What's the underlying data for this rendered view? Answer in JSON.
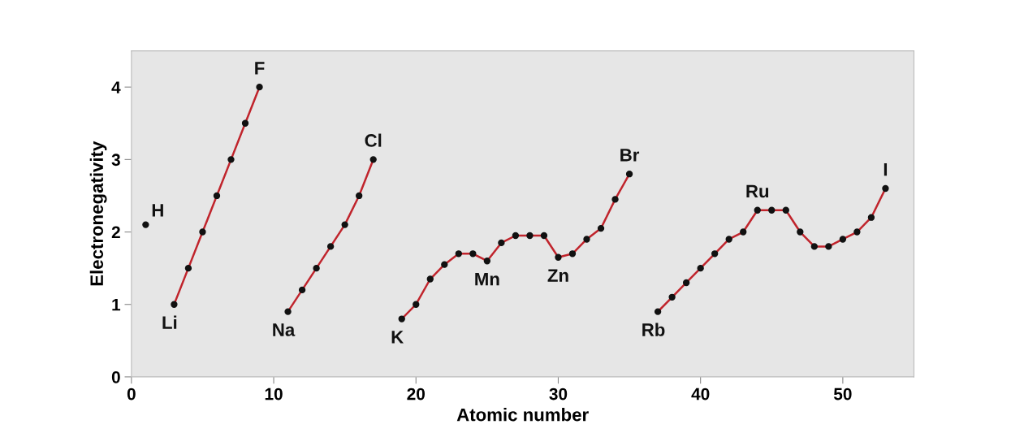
{
  "chart_data": {
    "type": "line",
    "xlabel": "Atomic number",
    "ylabel": "Electronegativity",
    "xlim": [
      0,
      55
    ],
    "xticks": [
      0,
      10,
      20,
      30,
      40,
      50
    ],
    "ylim": [
      0,
      4.5
    ],
    "yticks": [
      0,
      1,
      2,
      3,
      4
    ],
    "grid": false,
    "marker": "circle",
    "line_style": "solid",
    "series": [
      {
        "type": "scatter",
        "color": "#111111",
        "x": [
          1
        ],
        "values": [
          2.1
        ]
      },
      {
        "color": "#c0242c",
        "x": [
          3,
          4,
          5,
          6,
          7,
          8,
          9
        ],
        "values": [
          1.0,
          1.5,
          2.0,
          2.5,
          3.0,
          3.5,
          4.0
        ]
      },
      {
        "color": "#c0242c",
        "x": [
          11,
          12,
          13,
          14,
          15,
          16,
          17
        ],
        "values": [
          0.9,
          1.2,
          1.5,
          1.8,
          2.1,
          2.5,
          3.0
        ]
      },
      {
        "color": "#c0242c",
        "x": [
          19,
          20,
          21,
          22,
          23,
          24,
          25,
          26,
          27,
          28,
          29,
          30,
          31,
          32,
          33,
          34,
          35
        ],
        "values": [
          0.8,
          1.0,
          1.35,
          1.55,
          1.7,
          1.7,
          1.6,
          1.85,
          1.95,
          1.95,
          1.95,
          1.65,
          1.7,
          1.9,
          2.05,
          2.45,
          2.8
        ]
      },
      {
        "color": "#c0242c",
        "x": [
          37,
          38,
          39,
          40,
          41,
          42,
          43,
          44,
          45,
          46,
          47,
          48,
          49,
          50,
          51,
          52,
          53
        ],
        "values": [
          0.9,
          1.1,
          1.3,
          1.5,
          1.7,
          1.9,
          2.0,
          2.3,
          2.3,
          2.3,
          2.0,
          1.8,
          1.8,
          1.9,
          2.0,
          2.2,
          2.6
        ]
      }
    ],
    "annotations": [
      {
        "text": "H",
        "x": 1,
        "y": 2.1
      },
      {
        "text": "Li",
        "x": 3,
        "y": 1.0
      },
      {
        "text": "F",
        "x": 9,
        "y": 4.0
      },
      {
        "text": "Na",
        "x": 11,
        "y": 0.9
      },
      {
        "text": "Cl",
        "x": 17,
        "y": 3.0
      },
      {
        "text": "K",
        "x": 19,
        "y": 0.8
      },
      {
        "text": "Mn",
        "x": 25,
        "y": 1.6
      },
      {
        "text": "Zn",
        "x": 30,
        "y": 1.65
      },
      {
        "text": "Br",
        "x": 35,
        "y": 2.8
      },
      {
        "text": "Rb",
        "x": 37,
        "y": 0.9
      },
      {
        "text": "Ru",
        "x": 44,
        "y": 2.3
      },
      {
        "text": "I",
        "x": 53,
        "y": 2.6
      }
    ]
  }
}
